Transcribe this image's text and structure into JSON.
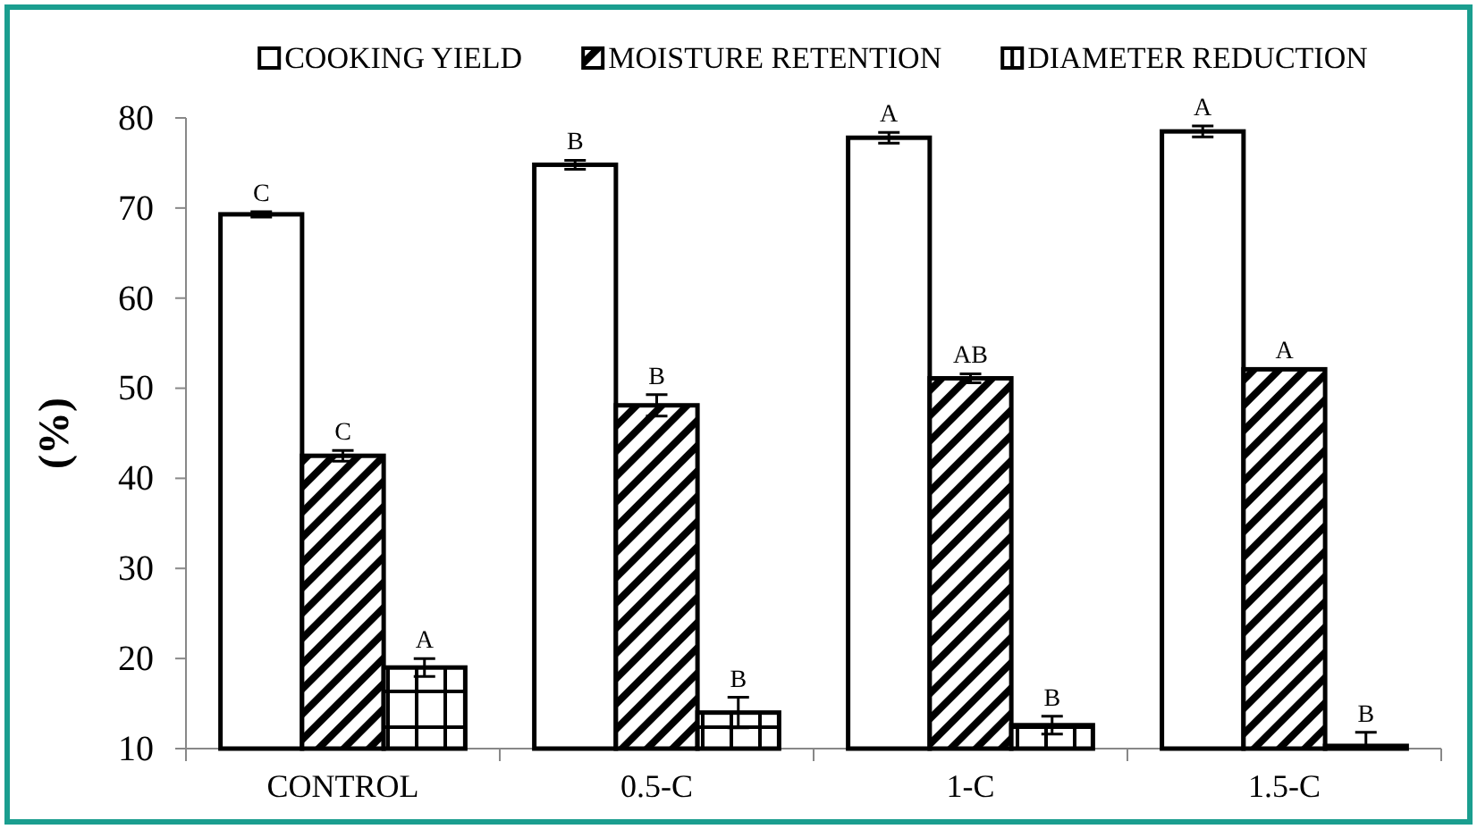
{
  "chart_data": {
    "type": "bar",
    "ylabel": "(%)",
    "categories": [
      "CONTROL",
      "0.5-C",
      "1-C",
      "1.5-C"
    ],
    "series": [
      {
        "name": "COOKING YIELD",
        "color": "#ffffff",
        "values": [
          69.3,
          74.8,
          77.8,
          78.5
        ],
        "errors": [
          0.3,
          0.5,
          0.6,
          0.6
        ]
      },
      {
        "name": "MOISTURE RETENTION",
        "color": "#000000",
        "values": [
          42.5,
          48.1,
          51.1,
          52.1
        ],
        "errors": [
          0.6,
          1.2,
          0.5,
          null
        ]
      },
      {
        "name": "DIAMETER REDUCTION",
        "color": "#000000",
        "values": [
          19.0,
          14.0,
          12.6,
          10.3
        ],
        "errors": [
          1.0,
          1.7,
          1.0,
          [
            10.3,
            11.8
          ]
        ]
      }
    ],
    "ylim": [
      10,
      80
    ],
    "yticks": [
      10,
      20,
      30,
      40,
      50,
      60,
      70,
      80
    ],
    "grid": false,
    "legend": "top",
    "annotations": [
      "C",
      "C",
      "A",
      "B",
      "B",
      "B",
      "A",
      "AB",
      "B",
      "A",
      "A",
      "B"
    ]
  }
}
